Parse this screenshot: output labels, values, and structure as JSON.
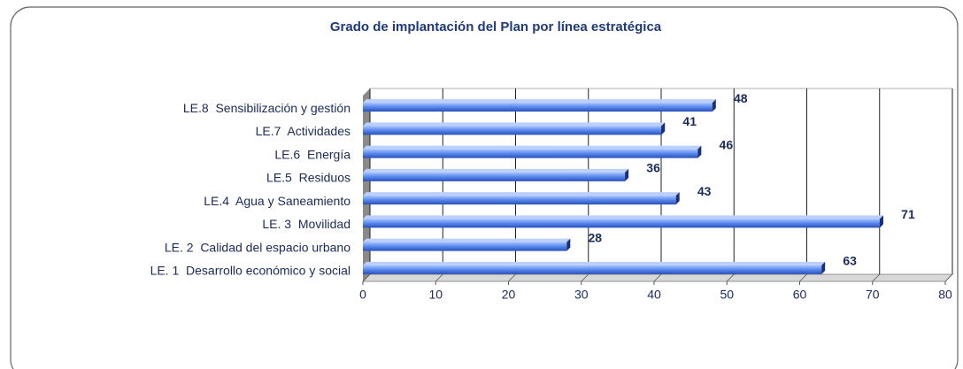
{
  "chart_data": {
    "type": "bar",
    "orientation": "horizontal",
    "title": "Grado de implantación del Plan por línea estratégica",
    "categories": [
      "LE.8  Sensibilización y gestión",
      "LE.7  Actividades",
      "LE.6  Energía",
      "LE.5  Residuos",
      "LE.4  Agua y Saneamiento",
      "LE. 3  Movilidad",
      "LE. 2  Calidad del espacio urbano",
      "LE. 1  Desarrollo económico y social"
    ],
    "values": [
      48,
      41,
      46,
      36,
      43,
      71,
      28,
      63
    ],
    "color": "#4f7fe8",
    "xlim": [
      0,
      80
    ],
    "xticks": [
      0,
      10,
      20,
      30,
      40,
      50,
      60,
      70,
      80
    ],
    "grid": true
  }
}
